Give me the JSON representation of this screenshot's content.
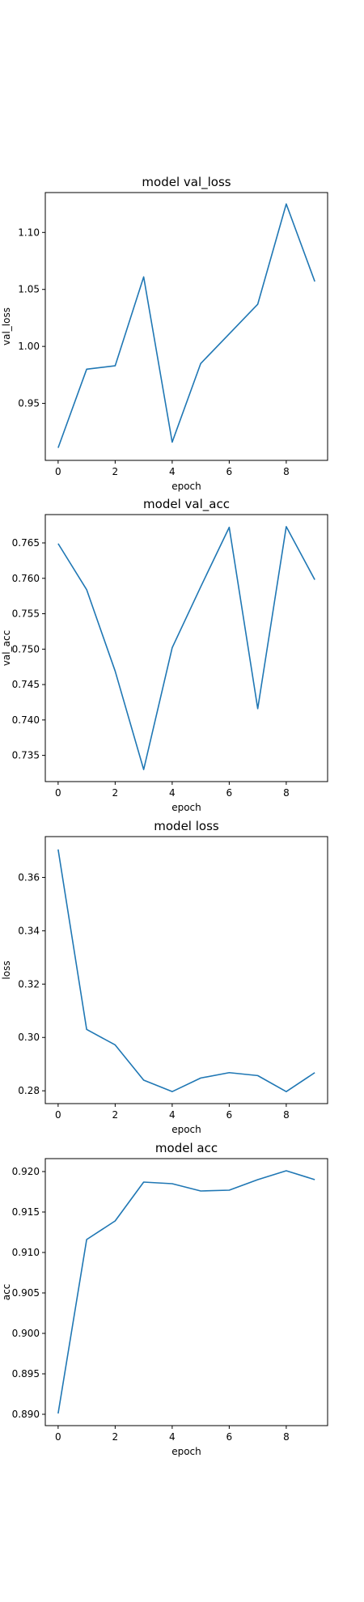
{
  "figure": {
    "background": "#ffffff",
    "line_color": "#1f77b4"
  },
  "chart_data": [
    {
      "type": "line",
      "title": "model val_loss",
      "xlabel": "epoch",
      "ylabel": "val_loss",
      "x": [
        0,
        1,
        2,
        3,
        4,
        5,
        6,
        7,
        8,
        9
      ],
      "series": [
        {
          "values": [
            0.911,
            0.98,
            0.983,
            1.061,
            0.916,
            0.985,
            1.011,
            1.037,
            1.125,
            1.057
          ]
        }
      ],
      "xlim": [
        -0.45,
        9.45
      ],
      "ylim": [
        0.9,
        1.135
      ],
      "xticks": [
        0,
        2,
        4,
        6,
        8
      ],
      "xtick_labels": [
        "0",
        "2",
        "4",
        "6",
        "8"
      ],
      "yticks": [
        0.95,
        1.0,
        1.05,
        1.1
      ],
      "ytick_labels": [
        "0.95",
        "1.00",
        "1.05",
        "1.10"
      ],
      "grid": false,
      "legend": "none"
    },
    {
      "type": "line",
      "title": "model val_acc",
      "xlabel": "epoch",
      "ylabel": "val_acc",
      "x": [
        0,
        1,
        2,
        3,
        4,
        5,
        6,
        7,
        8,
        9
      ],
      "series": [
        {
          "values": [
            0.7649,
            0.7584,
            0.7469,
            0.733,
            0.7502,
            0.7588,
            0.7672,
            0.7416,
            0.7673,
            0.7598
          ]
        }
      ],
      "xlim": [
        -0.45,
        9.45
      ],
      "ylim": [
        0.7313,
        0.769
      ],
      "xticks": [
        0,
        2,
        4,
        6,
        8
      ],
      "xtick_labels": [
        "0",
        "2",
        "4",
        "6",
        "8"
      ],
      "yticks": [
        0.735,
        0.74,
        0.745,
        0.75,
        0.755,
        0.76,
        0.765
      ],
      "ytick_labels": [
        "0.735",
        "0.740",
        "0.745",
        "0.750",
        "0.755",
        "0.760",
        "0.765"
      ],
      "grid": false,
      "legend": "none"
    },
    {
      "type": "line",
      "title": "model loss",
      "xlabel": "epoch",
      "ylabel": "loss",
      "x": [
        0,
        1,
        2,
        3,
        4,
        5,
        6,
        7,
        8,
        9
      ],
      "series": [
        {
          "values": [
            0.3705,
            0.303,
            0.2972,
            0.284,
            0.2797,
            0.2848,
            0.2868,
            0.2857,
            0.2797,
            0.2868
          ]
        }
      ],
      "xlim": [
        -0.45,
        9.45
      ],
      "ylim": [
        0.2752,
        0.3753
      ],
      "xticks": [
        0,
        2,
        4,
        6,
        8
      ],
      "xtick_labels": [
        "0",
        "2",
        "4",
        "6",
        "8"
      ],
      "yticks": [
        0.28,
        0.3,
        0.32,
        0.34,
        0.36
      ],
      "ytick_labels": [
        "0.28",
        "0.30",
        "0.32",
        "0.34",
        "0.36"
      ],
      "grid": false,
      "legend": "none"
    },
    {
      "type": "line",
      "title": "model acc",
      "xlabel": "epoch",
      "ylabel": "acc",
      "x": [
        0,
        1,
        2,
        3,
        4,
        5,
        6,
        7,
        8,
        9
      ],
      "series": [
        {
          "values": [
            0.8901,
            0.9116,
            0.9139,
            0.9187,
            0.9185,
            0.9176,
            0.9177,
            0.919,
            0.9201,
            0.919
          ]
        }
      ],
      "xlim": [
        -0.45,
        9.45
      ],
      "ylim": [
        0.8886,
        0.9216
      ],
      "xticks": [
        0,
        2,
        4,
        6,
        8
      ],
      "xtick_labels": [
        "0",
        "2",
        "4",
        "6",
        "8"
      ],
      "yticks": [
        0.89,
        0.895,
        0.9,
        0.905,
        0.91,
        0.915,
        0.92
      ],
      "ytick_labels": [
        "0.890",
        "0.895",
        "0.900",
        "0.905",
        "0.910",
        "0.915",
        "0.920"
      ],
      "grid": false,
      "legend": "none"
    }
  ]
}
